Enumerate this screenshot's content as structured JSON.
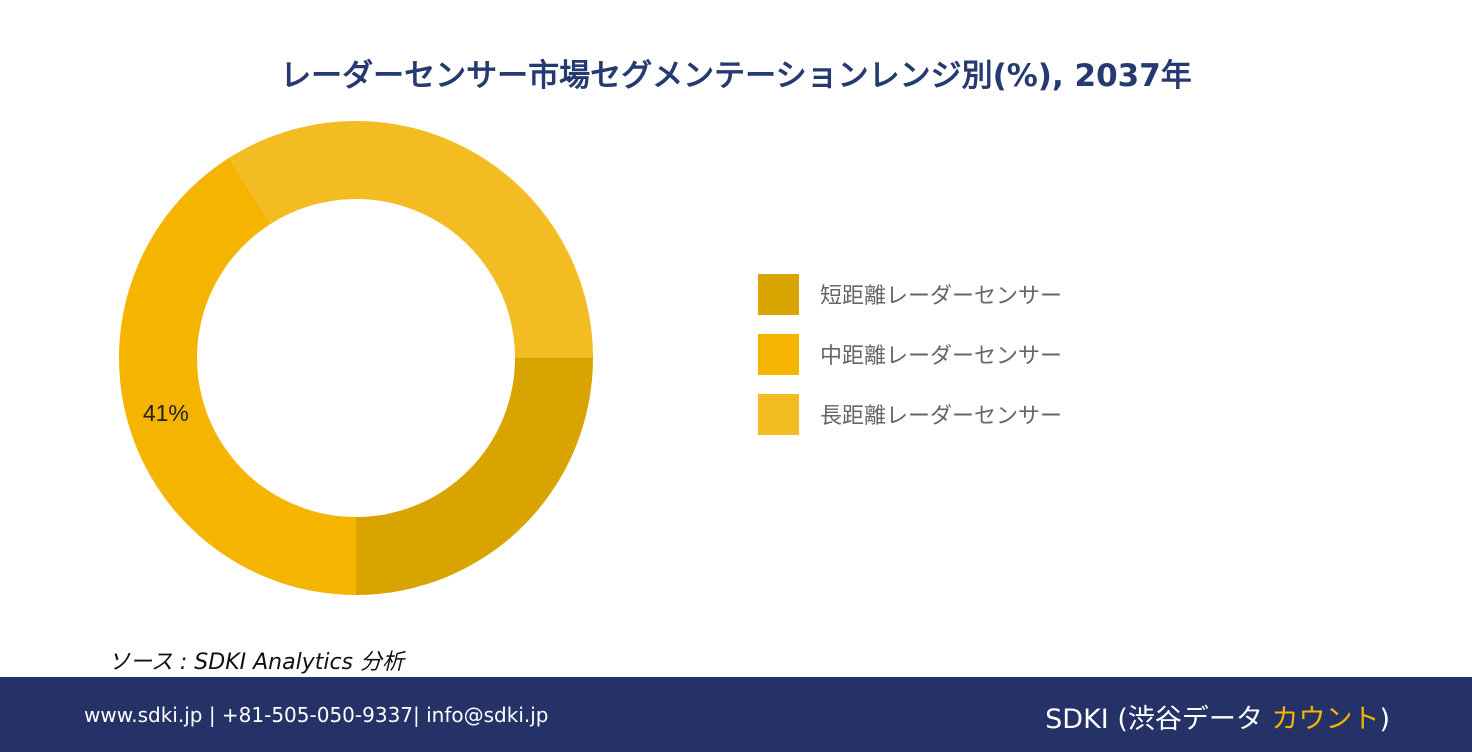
{
  "chart_data": {
    "type": "pie",
    "title": "レーダーセンサー市場セグメンテーションレンジ別(%), 2037年",
    "categories": [
      "短距離レーダーセンサー",
      "中距離レーダーセンサー",
      "長距離レーダーセンサー"
    ],
    "values": [
      25,
      41,
      34
    ],
    "colors": [
      "#d9a300",
      "#f4b400",
      "#f3bc22"
    ],
    "data_labels": [
      "",
      "41%",
      ""
    ],
    "legend_position": "right"
  },
  "source": "ソース : SDKI Analytics 分析",
  "footer": {
    "contact": "www.sdki.jp | +81-505-050-9337| info@sdki.jp",
    "brand_main": "SDKI (渋谷データ ",
    "brand_accent": "カウント",
    "brand_end": ")"
  }
}
